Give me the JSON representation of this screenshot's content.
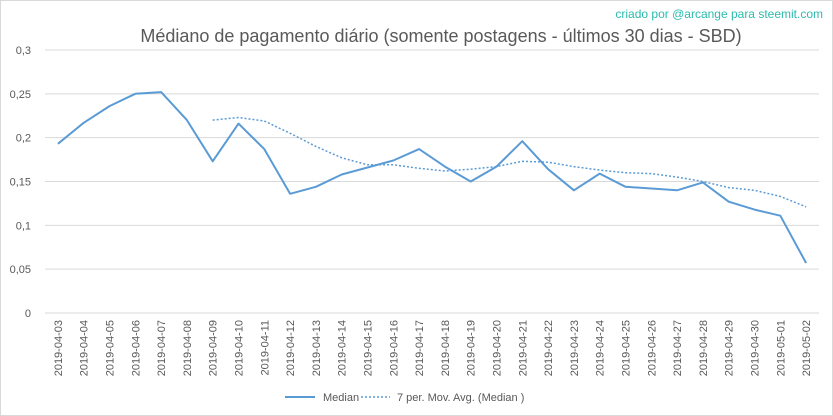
{
  "credit": "criado por @arcange para steemit.com",
  "chart_data": {
    "type": "line",
    "title": "Médiano de pagamento diário (somente postagens - últimos 30 dias - SBD)",
    "xlabel": "",
    "ylabel": "",
    "ylim": [
      0,
      0.3
    ],
    "yticks": [
      "0",
      "0,05",
      "0,1",
      "0,15",
      "0,2",
      "0,25",
      "0,3"
    ],
    "grid": "horizontal",
    "legend_position": "bottom",
    "colors": {
      "series": "#5b9bd5",
      "grid": "#d9d9d9",
      "text": "#595959",
      "credit": "#2bbbad"
    },
    "x": [
      "2019-04-03",
      "2019-04-04",
      "2019-04-05",
      "2019-04-06",
      "2019-04-07",
      "2019-04-08",
      "2019-04-09",
      "2019-04-10",
      "2019-04-11",
      "2019-04-12",
      "2019-04-13",
      "2019-04-14",
      "2019-04-15",
      "2019-04-16",
      "2019-04-17",
      "2019-04-18",
      "2019-04-19",
      "2019-04-20",
      "2019-04-21",
      "2019-04-22",
      "2019-04-23",
      "2019-04-24",
      "2019-04-25",
      "2019-04-26",
      "2019-04-27",
      "2019-04-28",
      "2019-04-29",
      "2019-04-30",
      "2019-05-01",
      "2019-05-02"
    ],
    "series": [
      {
        "name": "Median",
        "style": "solid",
        "values": [
          0.193,
          0.217,
          0.236,
          0.25,
          0.252,
          0.22,
          0.173,
          0.216,
          0.187,
          0.136,
          0.144,
          0.158,
          0.166,
          0.174,
          0.187,
          0.167,
          0.15,
          0.167,
          0.196,
          0.164,
          0.14,
          0.159,
          0.144,
          0.142,
          0.14,
          0.149,
          0.127,
          0.118,
          0.111,
          0.057
        ]
      },
      {
        "name": "7 per. Mov. Avg. (Median )",
        "style": "dotted",
        "values": [
          null,
          null,
          null,
          null,
          null,
          null,
          0.22,
          0.223,
          0.219,
          0.205,
          0.19,
          0.177,
          0.169,
          0.169,
          0.165,
          0.162,
          0.164,
          0.167,
          0.173,
          0.172,
          0.167,
          0.163,
          0.16,
          0.159,
          0.155,
          0.15,
          0.143,
          0.14,
          0.133,
          0.121
        ]
      }
    ]
  }
}
